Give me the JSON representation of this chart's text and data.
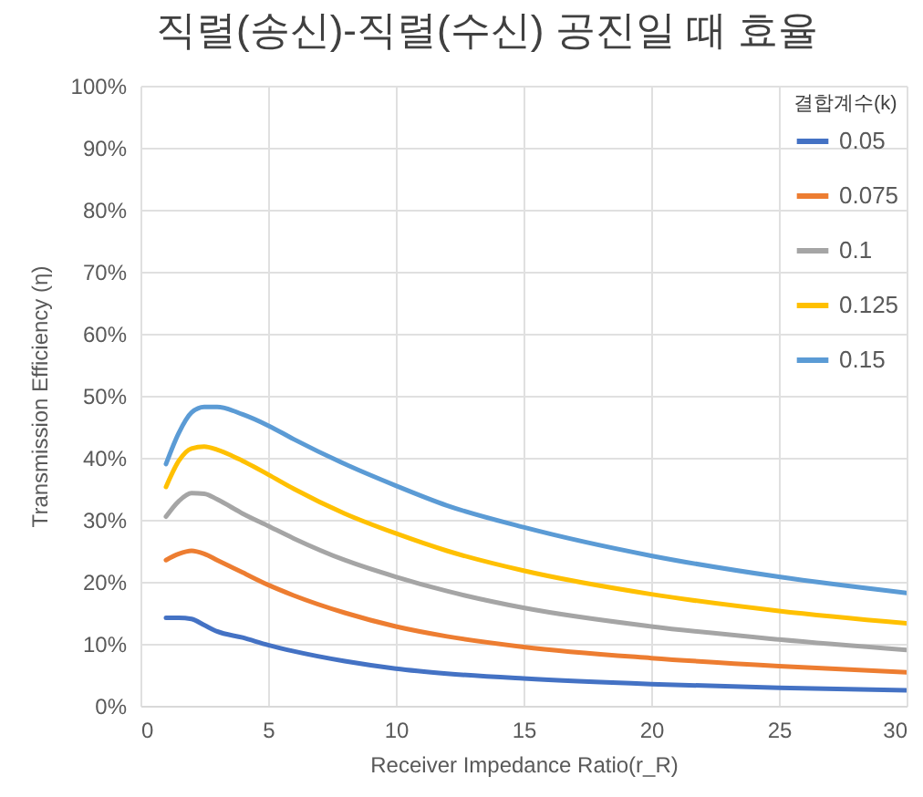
{
  "chart_data": {
    "type": "line",
    "title": "직렬(송신)-직렬(수신) 공진일 때 효율",
    "xlabel": "Receiver Impedance Ratio(r_R)",
    "ylabel": "Transmission Efficiency (η)",
    "legend_title": "결합계수(k)",
    "x": [
      1,
      1.5,
      2,
      2.5,
      3,
      4,
      5,
      6,
      8,
      10,
      12,
      15,
      20,
      25,
      30
    ],
    "series": [
      {
        "name": "0.05",
        "color": "#4472c4",
        "values": [
          14.2,
          14.2,
          14.0,
          13.0,
          12.0,
          11.0,
          9.8,
          8.8,
          7.2,
          6.0,
          5.2,
          4.4,
          3.5,
          2.9,
          2.5
        ]
      },
      {
        "name": "0.075",
        "color": "#ed7d31",
        "values": [
          23.5,
          24.5,
          25.0,
          24.5,
          23.5,
          21.5,
          19.5,
          17.8,
          15.0,
          12.8,
          11.2,
          9.5,
          7.7,
          6.4,
          5.4
        ]
      },
      {
        "name": "0.1",
        "color": "#a5a5a5",
        "values": [
          30.5,
          33.0,
          34.3,
          34.2,
          33.3,
          31.0,
          29.0,
          27.0,
          23.5,
          20.8,
          18.5,
          15.8,
          12.8,
          10.7,
          9.0
        ]
      },
      {
        "name": "0.125",
        "color": "#ffc000",
        "values": [
          35.3,
          39.5,
          41.5,
          41.8,
          41.3,
          39.5,
          37.3,
          35.0,
          31.0,
          27.8,
          25.0,
          21.8,
          18.0,
          15.3,
          13.3
        ]
      },
      {
        "name": "0.15",
        "color": "#5b9bd5",
        "values": [
          39.0,
          44.0,
          47.3,
          48.2,
          48.2,
          47.0,
          45.2,
          43.0,
          39.0,
          35.5,
          32.3,
          28.8,
          24.2,
          20.8,
          18.2
        ]
      }
    ],
    "xlim": [
      0,
      30
    ],
    "xticks": [
      0,
      5,
      10,
      15,
      20,
      25,
      30
    ],
    "ylim": [
      0,
      100
    ],
    "yticks": [
      {
        "value": 0,
        "label": "0%"
      },
      {
        "value": 10,
        "label": "10%"
      },
      {
        "value": 20,
        "label": "20%"
      },
      {
        "value": 30,
        "label": "30%"
      },
      {
        "value": 40,
        "label": "40%"
      },
      {
        "value": 50,
        "label": "50%"
      },
      {
        "value": 60,
        "label": "60%"
      },
      {
        "value": 70,
        "label": "70%"
      },
      {
        "value": 80,
        "label": "80%"
      },
      {
        "value": 90,
        "label": "90%"
      },
      {
        "value": 100,
        "label": "100%"
      }
    ],
    "grid": true,
    "legend": "top right",
    "marker": "none",
    "line_style": "solid"
  }
}
